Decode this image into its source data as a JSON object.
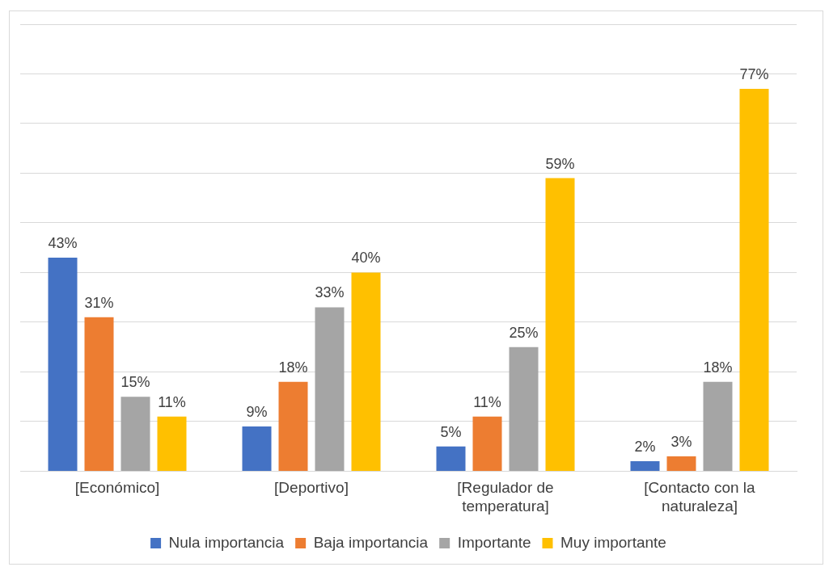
{
  "chart_data": {
    "type": "bar",
    "categories": [
      "[Económico]",
      "[Deportivo]",
      "[Regulador de temperatura]",
      "[Contacto con la naturaleza]"
    ],
    "series": [
      {
        "name": "Nula importancia",
        "color": "#4472c4",
        "values": [
          43,
          9,
          5,
          2
        ],
        "value_labels": [
          "43%",
          "9%",
          "5%",
          "2%"
        ]
      },
      {
        "name": "Baja importancia",
        "color": "#ed7d31",
        "values": [
          31,
          18,
          11,
          3
        ],
        "value_labels": [
          "31%",
          "18%",
          "11%",
          "3%"
        ]
      },
      {
        "name": "Importante",
        "color": "#a5a5a5",
        "values": [
          15,
          33,
          25,
          18
        ],
        "value_labels": [
          "15%",
          "33%",
          "25%",
          "18%"
        ]
      },
      {
        "name": "Muy importante",
        "color": "#ffc000",
        "values": [
          11,
          40,
          59,
          77
        ],
        "value_labels": [
          "11%",
          "40%",
          "59%",
          "77%"
        ]
      }
    ],
    "ylim": [
      0,
      90
    ],
    "yticks": [
      {
        "value": 0,
        "label": null
      },
      {
        "value": 10,
        "label": null
      },
      {
        "value": 20,
        "label": null
      },
      {
        "value": 30,
        "label": null
      },
      {
        "value": 40,
        "label": null
      },
      {
        "value": 50,
        "label": null
      },
      {
        "value": 60,
        "label": null
      },
      {
        "value": 70,
        "label": null
      },
      {
        "value": 80,
        "label": null
      },
      {
        "value": 90,
        "label": null
      }
    ],
    "tick_labels": "x",
    "grid": "y",
    "legend": "bottom"
  }
}
